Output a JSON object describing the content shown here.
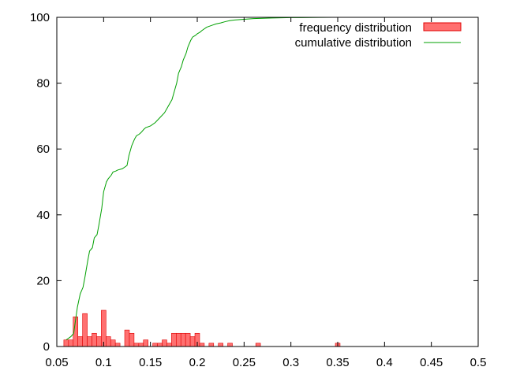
{
  "chart_data": {
    "type": "bar",
    "title": "",
    "xlabel": "",
    "ylabel": "",
    "xlim": [
      0.05,
      0.5
    ],
    "ylim": [
      0,
      100
    ],
    "xticks": [
      0.05,
      0.1,
      0.15,
      0.2,
      0.25,
      0.3,
      0.35,
      0.4,
      0.45,
      0.5
    ],
    "xtick_labels": [
      "0.05",
      "0.1",
      "0.15",
      "0.2",
      "0.25",
      "0.3",
      "0.35",
      "0.4",
      "0.45",
      "0.5"
    ],
    "yticks": [
      0,
      20,
      40,
      60,
      80,
      100
    ],
    "ytick_labels": [
      "0",
      "20",
      "40",
      "60",
      "80",
      "100"
    ],
    "grid": false,
    "legend_position": "top-right",
    "series": [
      {
        "name": "frequency distribution",
        "kind": "bar",
        "color": "#ff7070",
        "edge_color": "#e00000",
        "bin_width": 0.005,
        "x": [
          0.06,
          0.065,
          0.07,
          0.075,
          0.08,
          0.085,
          0.09,
          0.095,
          0.1,
          0.105,
          0.11,
          0.115,
          0.125,
          0.13,
          0.135,
          0.14,
          0.145,
          0.155,
          0.16,
          0.165,
          0.17,
          0.175,
          0.18,
          0.185,
          0.19,
          0.195,
          0.2,
          0.205,
          0.215,
          0.225,
          0.235,
          0.265,
          0.35
        ],
        "values": [
          2,
          2,
          9,
          3,
          10,
          3,
          4,
          3,
          11,
          3,
          2,
          1,
          5,
          4,
          1,
          1,
          2,
          1,
          1,
          2,
          1,
          4,
          4,
          4,
          4,
          3,
          4,
          1,
          1,
          1,
          1,
          1,
          1
        ]
      },
      {
        "name": "cumulative distribution",
        "kind": "line",
        "color": "#00a000",
        "x": [
          0.06,
          0.065,
          0.068,
          0.07,
          0.072,
          0.075,
          0.078,
          0.08,
          0.083,
          0.085,
          0.088,
          0.09,
          0.093,
          0.095,
          0.098,
          0.1,
          0.103,
          0.105,
          0.108,
          0.11,
          0.113,
          0.115,
          0.12,
          0.125,
          0.127,
          0.13,
          0.133,
          0.135,
          0.138,
          0.14,
          0.143,
          0.145,
          0.15,
          0.155,
          0.16,
          0.165,
          0.168,
          0.17,
          0.173,
          0.175,
          0.178,
          0.18,
          0.183,
          0.185,
          0.188,
          0.19,
          0.193,
          0.195,
          0.198,
          0.2,
          0.203,
          0.205,
          0.21,
          0.215,
          0.22,
          0.225,
          0.23,
          0.235,
          0.24,
          0.25,
          0.26,
          0.27,
          0.28,
          0.29,
          0.3,
          0.31,
          0.32,
          0.33,
          0.345
        ],
        "values": [
          2,
          3,
          4,
          8,
          12,
          16,
          18,
          21,
          26,
          29,
          30,
          33,
          34,
          37,
          42,
          47,
          50,
          51,
          52,
          53,
          53.3,
          53.6,
          54,
          55,
          58,
          61,
          63,
          64,
          64.5,
          65,
          66,
          66.5,
          67,
          68,
          69.5,
          71,
          72.5,
          73.5,
          75,
          77,
          80,
          83,
          85,
          87,
          89,
          91,
          93,
          94,
          94.5,
          95,
          95.5,
          96,
          97,
          97.5,
          98,
          98.3,
          98.7,
          99,
          99.2,
          99.4,
          99.6,
          99.7,
          99.8,
          99.85,
          99.9,
          99.92,
          99.95,
          99.98,
          100
        ]
      }
    ]
  }
}
